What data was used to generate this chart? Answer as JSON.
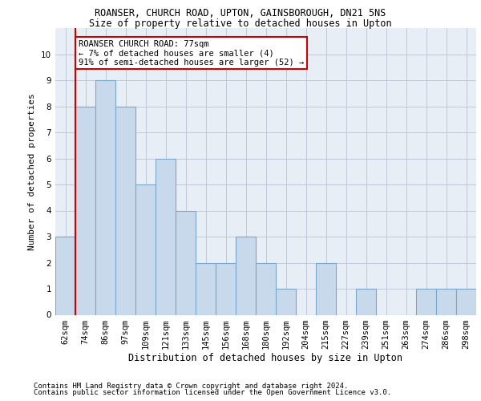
{
  "title1": "ROANSER, CHURCH ROAD, UPTON, GAINSBOROUGH, DN21 5NS",
  "title2": "Size of property relative to detached houses in Upton",
  "xlabel": "Distribution of detached houses by size in Upton",
  "ylabel": "Number of detached properties",
  "bar_labels": [
    "62sqm",
    "74sqm",
    "86sqm",
    "97sqm",
    "109sqm",
    "121sqm",
    "133sqm",
    "145sqm",
    "156sqm",
    "168sqm",
    "180sqm",
    "192sqm",
    "204sqm",
    "215sqm",
    "227sqm",
    "239sqm",
    "251sqm",
    "263sqm",
    "274sqm",
    "286sqm",
    "298sqm"
  ],
  "bar_values": [
    3,
    8,
    9,
    8,
    5,
    6,
    4,
    2,
    2,
    3,
    2,
    1,
    0,
    2,
    0,
    1,
    0,
    0,
    1,
    1,
    1
  ],
  "bar_color": "#c9d9ec",
  "bar_edge_color": "#7aa6cc",
  "bar_edge_width": 0.8,
  "grid_color": "#c0c8d8",
  "background_color": "#e8eef5",
  "vline_x_idx": 1,
  "vline_color": "#cc0000",
  "annotation_text": "ROANSER CHURCH ROAD: 77sqm\n← 7% of detached houses are smaller (4)\n91% of semi-detached houses are larger (52) →",
  "annotation_box_color": "#ffffff",
  "annotation_box_edge": "#cc0000",
  "footer1": "Contains HM Land Registry data © Crown copyright and database right 2024.",
  "footer2": "Contains public sector information licensed under the Open Government Licence v3.0.",
  "ylim": [
    0,
    11
  ],
  "yticks": [
    0,
    1,
    2,
    3,
    4,
    5,
    6,
    7,
    8,
    9,
    10,
    11
  ],
  "title1_fontsize": 8.5,
  "title2_fontsize": 8.5,
  "xlabel_fontsize": 8.5,
  "ylabel_fontsize": 8.0,
  "tick_fontsize": 7.5,
  "annotation_fontsize": 7.5,
  "footer_fontsize": 6.5
}
